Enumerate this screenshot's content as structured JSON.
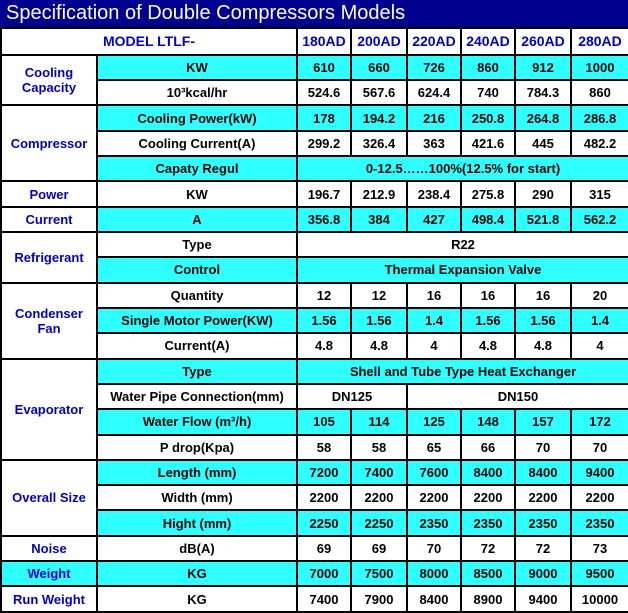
{
  "header": {
    "title": "Specification of Double Compressors Models"
  },
  "table": {
    "model_label": "MODEL LTLF-",
    "models": [
      "180AD",
      "200AD",
      "220AD",
      "240AD",
      "260AD",
      "280AD"
    ],
    "sections": [
      {
        "label": "Cooling Capacity",
        "rows": [
          {
            "param": "KW",
            "values": [
              610,
              660,
              726,
              860,
              912,
              1000
            ]
          },
          {
            "param": "10³kcal/hr",
            "values": [
              524.6,
              567.6,
              624.4,
              740,
              784.3,
              860
            ]
          }
        ]
      },
      {
        "label": "Compressor",
        "rows": [
          {
            "param": "Cooling Power(kW)",
            "values": [
              178,
              194.2,
              216,
              250.8,
              264.8,
              286.8
            ]
          },
          {
            "param": "Cooling Current(A)",
            "values": [
              299.2,
              326.4,
              363,
              421.6,
              445,
              482.2
            ]
          },
          {
            "param": "Capaty Regul",
            "values": [
              "0-12.5……100%(12.5% for start)"
            ]
          }
        ]
      },
      {
        "label": "Power",
        "rows": [
          {
            "param": "KW",
            "values": [
              196.7,
              212.9,
              238.4,
              275.8,
              290,
              315
            ]
          }
        ]
      },
      {
        "label": "Current",
        "rows": [
          {
            "param": "A",
            "values": [
              356.8,
              384,
              427,
              498.4,
              521.8,
              562.2
            ]
          }
        ]
      },
      {
        "label": "Refrigerant",
        "rows": [
          {
            "param": "Type",
            "values": [
              "R22"
            ]
          },
          {
            "param": "Control",
            "values": [
              "Thermal Expansion Valve"
            ]
          }
        ]
      },
      {
        "label": "Condenser Fan",
        "rows": [
          {
            "param": "Quantity",
            "values": [
              12,
              12,
              16,
              16,
              16,
              20
            ]
          },
          {
            "param": "Single Motor Power(KW)",
            "values": [
              1.56,
              1.56,
              1.4,
              1.56,
              1.56,
              1.4
            ]
          },
          {
            "param": "Current(A)",
            "values": [
              4.8,
              4.8,
              4,
              4.8,
              4.8,
              4
            ]
          }
        ]
      },
      {
        "label": "Evaporator",
        "rows": [
          {
            "param": "Type",
            "values": [
              "Shell and Tube Type Heat Exchanger"
            ]
          },
          {
            "param": "Water Pipe Connection(mm)",
            "values": [
              "DN125",
              "DN150"
            ]
          },
          {
            "param": "Water Flow (m³/h)",
            "values": [
              105,
              114,
              125,
              148,
              157,
              172
            ]
          },
          {
            "param": "P drop(Kpa)",
            "values": [
              58,
              58,
              65,
              66,
              70,
              70
            ]
          }
        ]
      },
      {
        "label": "Overall Size",
        "rows": [
          {
            "param": "Length (mm)",
            "values": [
              7200,
              7400,
              7600,
              8400,
              8400,
              9400
            ]
          },
          {
            "param": "Width (mm)",
            "values": [
              2200,
              2200,
              2200,
              2200,
              2200,
              2200
            ]
          },
          {
            "param": "Hight (mm)",
            "values": [
              2250,
              2250,
              2350,
              2350,
              2350,
              2350
            ]
          }
        ]
      },
      {
        "label": "Noise",
        "rows": [
          {
            "param": "dB(A)",
            "values": [
              69,
              69,
              70,
              72,
              72,
              73
            ]
          }
        ]
      },
      {
        "label": "Weight",
        "rows": [
          {
            "param": "KG",
            "values": [
              7000,
              7500,
              8000,
              8500,
              9000,
              9500
            ]
          }
        ]
      },
      {
        "label": "Run Weight",
        "rows": [
          {
            "param": "KG",
            "values": [
              7400,
              7900,
              8400,
              8900,
              9400,
              10000
            ]
          }
        ]
      }
    ]
  }
}
